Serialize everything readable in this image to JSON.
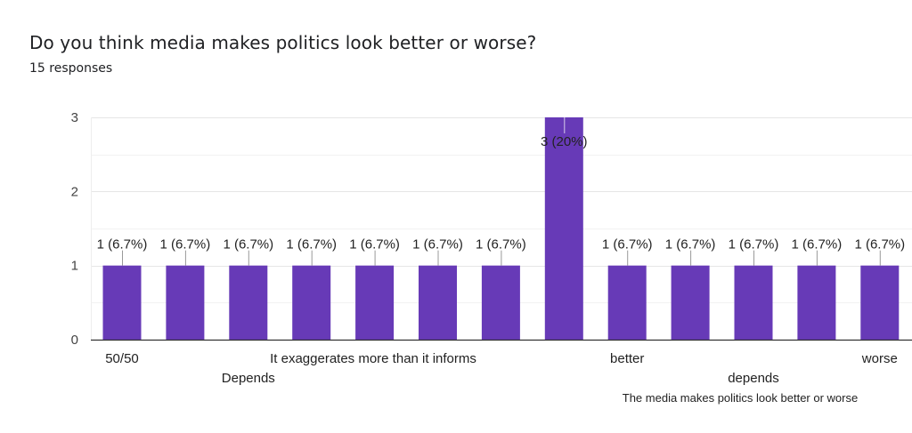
{
  "header": {
    "title": "Do you think media makes politics look better or worse?",
    "responses": "15 responses"
  },
  "colors": {
    "bar": "#673ab7",
    "grid": "#ebebeb",
    "axis": "#333333"
  },
  "chart_data": {
    "type": "bar",
    "title": "Do you think media makes politics look better or worse?",
    "subtitle": "15 responses",
    "xlabel": "",
    "ylabel": "",
    "ylim": [
      0,
      3
    ],
    "yticks": [
      "0",
      "1",
      "2",
      "3"
    ],
    "grid": true,
    "minor_grid_step": 0.5,
    "categories": [
      "50/50",
      "",
      "Depends",
      "",
      "It exaggerates more than it informs",
      "",
      "",
      "",
      "better",
      "",
      "depends",
      "The media makes politics look better or worse",
      "worse"
    ],
    "values": [
      1,
      1,
      1,
      1,
      1,
      1,
      1,
      3,
      1,
      1,
      1,
      1,
      1
    ],
    "data_labels": [
      "1 (6.7%)",
      "1 (6.7%)",
      "1 (6.7%)",
      "1 (6.7%)",
      "1 (6.7%)",
      "1 (6.7%)",
      "1 (6.7%)",
      "3 (20%)",
      "1 (6.7%)",
      "1 (6.7%)",
      "1 (6.7%)",
      "1 (6.7%)",
      "1 (6.7%)"
    ],
    "legend": "none"
  }
}
